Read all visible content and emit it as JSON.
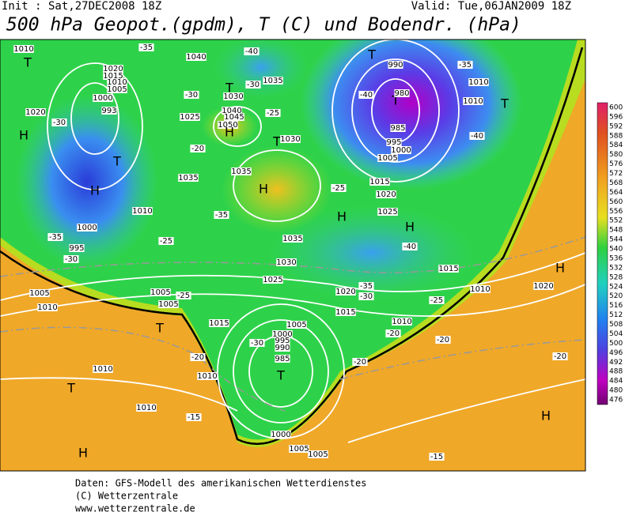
{
  "header": {
    "init": "Init : Sat,27DEC2008 18Z",
    "valid": "Valid: Tue,06JAN2009 18Z",
    "title": "500 hPa Geopot.(gpdm), T (C) und Bodendr. (hPa)"
  },
  "colorbar": {
    "labels": [
      600,
      596,
      592,
      588,
      584,
      580,
      576,
      572,
      568,
      564,
      560,
      556,
      552,
      548,
      544,
      540,
      536,
      532,
      528,
      524,
      520,
      516,
      512,
      508,
      504,
      500,
      496,
      492,
      488,
      484,
      480,
      476
    ]
  },
  "map": {
    "labels": [
      "1010",
      "T",
      "1020",
      "1015",
      "1010",
      "1005",
      "1000",
      "993",
      "1020",
      "-30",
      "H",
      "T",
      "H",
      "1010",
      "1000",
      "-35",
      "995",
      "-30",
      "-35",
      "1040",
      "-40",
      "1035",
      "T",
      "-30",
      "1030",
      "-30",
      "1040",
      "1045",
      "1050",
      "1025",
      "H",
      "-25",
      "T",
      "1030",
      "-20",
      "1035",
      "1035",
      "H",
      "-25",
      "H",
      "-35",
      "-25",
      "1030",
      "1025",
      "1035",
      "T",
      "990",
      "T",
      "980",
      "985",
      "-40",
      "-35",
      "1010",
      "1010",
      "T",
      "-40",
      "995",
      "1000",
      "1005",
      "1015",
      "1020",
      "1025",
      "H",
      "-40",
      "1015",
      "-35",
      "1020",
      "-30",
      "-25",
      "1010",
      "1020",
      "H",
      "1015",
      "1010",
      "-20",
      "-20",
      "-20",
      "1005",
      "1010",
      "1005",
      "1005",
      "-25",
      "T",
      "1015",
      "-30",
      "1005",
      "1000",
      "995",
      "990",
      "985",
      "T",
      "-20",
      "-20",
      "1010",
      "1010",
      "T",
      "1010",
      "-15",
      "H",
      "1000",
      "1005",
      "1005",
      "H",
      "-15"
    ]
  },
  "footer": {
    "lines": [
      "Daten: GFS-Modell des amerikanischen Wetterdienstes",
      "(C) Wetterzentrale",
      "www.wetterzentrale.de"
    ]
  }
}
